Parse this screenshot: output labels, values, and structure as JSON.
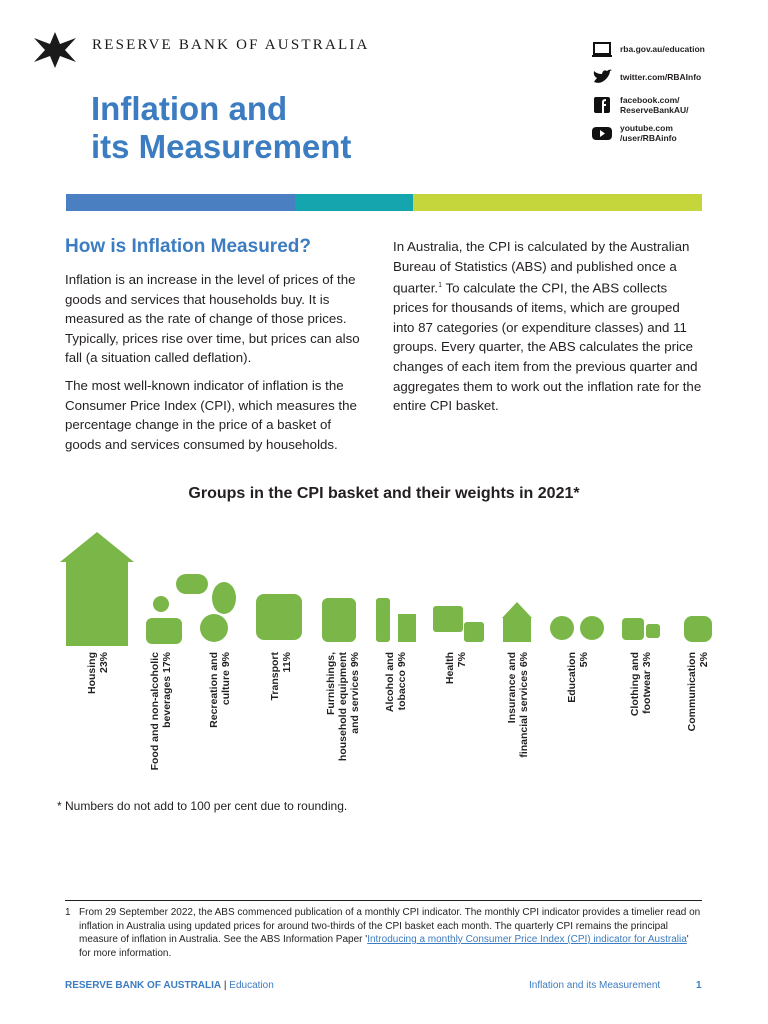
{
  "header": {
    "org": "RESERVE BANK OF AUSTRALIA",
    "title_lines": [
      "Inflation and",
      "its Measurement"
    ]
  },
  "links": [
    {
      "lines": [
        "rba.gov.au/education"
      ]
    },
    {
      "lines": [
        "twitter.com/RBAInfo"
      ]
    },
    {
      "lines": [
        "facebook.com/",
        "ReserveBankAU/"
      ]
    },
    {
      "lines": [
        "youtube.com",
        "/user/RBAinfo"
      ]
    }
  ],
  "section": {
    "heading": "How is Inflation Measured?",
    "left_paragraphs": [
      "Inflation is an increase in the level of prices of the goods and services that households buy. It is measured as the rate of change of those prices. Typically, prices rise over time, but prices can also fall (a situation called deflation).",
      "The most well-known indicator of inflation is the Consumer Price Index (CPI), which measures the percentage change in the price of a basket of goods and services consumed by households."
    ],
    "right_paragraph": {
      "before": "In Australia, the CPI is calculated by the Australian Bureau of Statistics (ABS) and published once a quarter.",
      "sup": "1",
      "after": " To calculate the CPI, the ABS collects prices for thousands of items, which are grouped into 87 categories (or expenditure classes) and 11 groups. Every quarter, the ABS calculates the price changes of each item from the previous quarter and aggregates them to work out the inflation rate for the entire CPI basket."
    }
  },
  "infographic": {
    "title": "Groups in the CPI basket and their weights in 2021*",
    "groups": [
      {
        "lines": [
          "Housing",
          "23%"
        ]
      },
      {
        "lines": [
          "Food and non-alcoholic",
          "beverages 17%"
        ]
      },
      {
        "lines": [
          "Recreation and",
          "culture 9%"
        ]
      },
      {
        "lines": [
          "Transport",
          "11%"
        ]
      },
      {
        "lines": [
          "Furnishings,",
          "household equipment",
          "and services 9%"
        ]
      },
      {
        "lines": [
          "Alcohol and",
          "tobacco 9%"
        ]
      },
      {
        "lines": [
          "Health",
          "7%"
        ]
      },
      {
        "lines": [
          "Insurance and",
          "financial services 6%"
        ]
      },
      {
        "lines": [
          "Education",
          "5%"
        ]
      },
      {
        "lines": [
          "Clothing and",
          "footwear 3%"
        ]
      },
      {
        "lines": [
          "Communication",
          "2%"
        ]
      }
    ],
    "note": "* Numbers do not add to 100 per cent due to rounding."
  },
  "footnote": {
    "number": "1",
    "before": "From 29 September 2022, the ABS commenced publication of a monthly CPI indicator. The monthly CPI indicator provides a timelier read on inflation in Australia using updated prices for around two-thirds of the CPI basket each month. The quarterly CPI remains the principal measure of inflation in Australia. See the ABS Information Paper '",
    "link": "Introducing a monthly Consumer Price Index (CPI) indicator for Australia",
    "after": "' for more information."
  },
  "footer": {
    "org": "RESERVE BANK OF AUSTRALIA",
    "separator": "|",
    "section": "Education",
    "doc": "Inflation and its Measurement",
    "page": "1"
  }
}
